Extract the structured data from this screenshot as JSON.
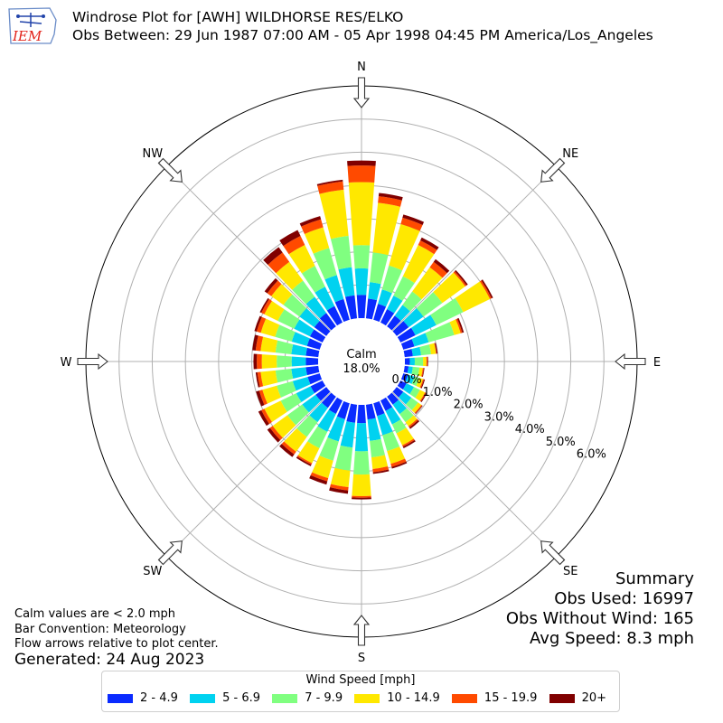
{
  "header": {
    "logo_text": "IEM",
    "title_line1": "Windrose Plot for [AWH] WILDHORSE RES/ELKO",
    "title_line2": "Obs Between: 29 Jun 1987 07:00 AM - 05 Apr 1998 04:45 PM America/Los_Angeles"
  },
  "notes": {
    "line1": "Calm values are < 2.0 mph",
    "line2": "Bar Convention: Meteorology",
    "line3": "Flow arrows relative to plot center.",
    "generated": "Generated: 24 Aug 2023"
  },
  "summary": {
    "title": "Summary",
    "obs_used": "Obs Used: 16997",
    "obs_without_wind": "Obs Without Wind: 165",
    "avg_speed": "Avg Speed: 8.3 mph"
  },
  "colors": {
    "accent": "#e2231a"
  },
  "chart_data": {
    "type": "windrose",
    "calm_label": "Calm",
    "calm_value": "18.0%",
    "direction_labels": [
      "N",
      "NE",
      "E",
      "SE",
      "S",
      "SW",
      "W",
      "NW"
    ],
    "radial_ticks": [
      {
        "value": 0,
        "label": "0.0%"
      },
      {
        "value": 1,
        "label": "1.0%"
      },
      {
        "value": 2,
        "label": "2.0%"
      },
      {
        "value": 3,
        "label": "3.0%"
      },
      {
        "value": 4,
        "label": "4.0%"
      },
      {
        "value": 5,
        "label": "5.0%"
      },
      {
        "value": 6,
        "label": "6.0%"
      }
    ],
    "rmax": 7.0,
    "legend_title": "Wind Speed [mph]",
    "speed_bins": [
      {
        "label": "2 - 4.9",
        "color": "#0a2bff"
      },
      {
        "label": "5 - 6.9",
        "color": "#00d2f0"
      },
      {
        "label": "7 - 9.9",
        "color": "#80ff80"
      },
      {
        "label": "10 - 14.9",
        "color": "#ffe800"
      },
      {
        "label": "15 - 19.9",
        "color": "#ff4a00"
      },
      {
        "label": "20+",
        "color": "#800000"
      }
    ],
    "directions_deg": [
      0,
      10,
      20,
      30,
      40,
      50,
      60,
      70,
      80,
      90,
      100,
      110,
      120,
      130,
      140,
      150,
      160,
      170,
      180,
      190,
      200,
      210,
      220,
      230,
      240,
      250,
      260,
      270,
      280,
      290,
      300,
      310,
      320,
      330,
      340,
      350
    ],
    "cumulative_percent": [
      [
        0.7,
        1.5,
        2.2,
        4.1,
        4.6,
        4.75
      ],
      [
        0.6,
        1.1,
        2.0,
        3.5,
        3.7,
        3.8
      ],
      [
        0.5,
        0.95,
        1.7,
        3.0,
        3.2,
        3.3
      ],
      [
        0.45,
        0.9,
        1.55,
        2.6,
        2.75,
        2.85
      ],
      [
        0.4,
        0.8,
        1.3,
        2.2,
        2.4,
        2.5
      ],
      [
        0.45,
        1.0,
        1.7,
        2.55,
        2.6,
        2.65
      ],
      [
        0.5,
        1.2,
        2.1,
        3.0,
        3.05,
        3.1
      ],
      [
        0.35,
        0.8,
        1.6,
        1.8,
        1.85,
        1.9
      ],
      [
        0.25,
        0.5,
        0.8,
        0.95,
        0.97,
        1.0
      ],
      [
        0.15,
        0.3,
        0.55,
        0.65,
        0.68,
        0.7
      ],
      [
        0.12,
        0.25,
        0.45,
        0.55,
        0.58,
        0.6
      ],
      [
        0.15,
        0.35,
        0.5,
        0.62,
        0.65,
        0.68
      ],
      [
        0.2,
        0.45,
        0.65,
        0.82,
        0.85,
        0.88
      ],
      [
        0.25,
        0.55,
        0.8,
        0.92,
        0.95,
        0.97
      ],
      [
        0.3,
        0.65,
        0.95,
        1.1,
        1.15,
        1.2
      ],
      [
        0.35,
        0.8,
        1.1,
        1.5,
        1.55,
        1.6
      ],
      [
        0.4,
        1.0,
        1.5,
        1.9,
        2.0,
        2.05
      ],
      [
        0.45,
        1.1,
        1.6,
        1.95,
        2.05,
        2.1
      ],
      [
        0.55,
        1.4,
        2.1,
        2.75,
        2.8,
        2.85
      ],
      [
        0.55,
        1.3,
        2.0,
        2.5,
        2.6,
        2.7
      ],
      [
        0.5,
        1.2,
        1.8,
        2.35,
        2.45,
        2.55
      ],
      [
        0.45,
        1.05,
        1.6,
        2.1,
        2.15,
        2.2
      ],
      [
        0.42,
        0.95,
        1.5,
        2.05,
        2.15,
        2.25
      ],
      [
        0.4,
        0.9,
        1.45,
        2.0,
        2.1,
        2.2
      ],
      [
        0.4,
        0.88,
        1.4,
        1.95,
        2.05,
        2.15
      ],
      [
        0.38,
        0.85,
        1.35,
        1.8,
        1.9,
        2.0
      ],
      [
        0.38,
        0.82,
        1.3,
        1.75,
        1.85,
        1.9
      ],
      [
        0.37,
        0.8,
        1.25,
        1.7,
        1.85,
        1.95
      ],
      [
        0.38,
        0.82,
        1.3,
        1.75,
        1.9,
        2.0
      ],
      [
        0.4,
        0.88,
        1.4,
        1.85,
        1.98,
        2.05
      ],
      [
        0.42,
        0.95,
        1.5,
        1.95,
        2.05,
        2.1
      ],
      [
        0.45,
        1.0,
        1.6,
        2.05,
        2.2,
        2.3
      ],
      [
        0.5,
        1.1,
        1.7,
        2.4,
        2.75,
        2.95
      ],
      [
        0.55,
        1.2,
        1.9,
        2.6,
        2.9,
        3.1
      ],
      [
        0.65,
        1.4,
        2.25,
        2.9,
        3.15,
        3.25
      ],
      [
        0.7,
        1.55,
        2.5,
        3.9,
        4.15,
        4.2
      ]
    ]
  }
}
